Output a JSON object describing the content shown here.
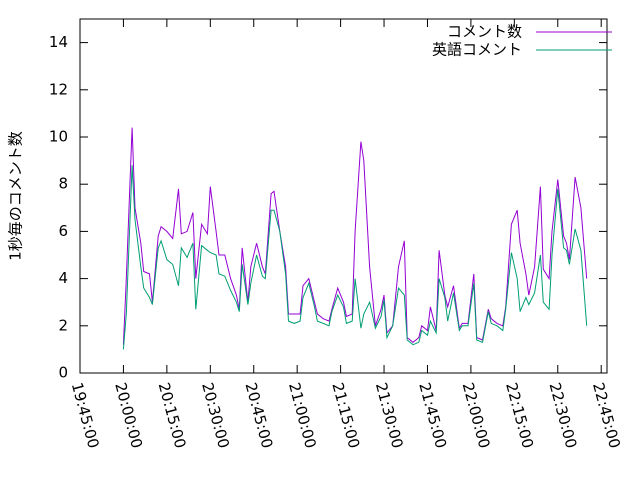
{
  "chart_data": {
    "type": "line",
    "y_label": "1秒毎のコメント数",
    "x": [
      "20:00:00",
      "20:01:00",
      "20:03:00",
      "20:04:00",
      "20:06:00",
      "20:07:00",
      "20:09:00",
      "20:10:00",
      "20:12:00",
      "20:13:00",
      "20:15:00",
      "20:17:00",
      "20:19:00",
      "20:20:00",
      "20:22:00",
      "20:24:00",
      "20:25:00",
      "20:27:00",
      "20:29:00",
      "20:30:00",
      "20:32:00",
      "20:33:00",
      "20:35:00",
      "20:37:00",
      "20:39:00",
      "20:40:00",
      "20:41:00",
      "20:43:00",
      "20:44:00",
      "20:46:00",
      "20:48:00",
      "20:49:00",
      "20:51:00",
      "20:52:00",
      "20:54:00",
      "20:56:00",
      "20:57:00",
      "20:59:00",
      "21:01:00",
      "21:02:00",
      "21:04:00",
      "21:06:00",
      "21:07:00",
      "21:09:00",
      "21:11:00",
      "21:12:00",
      "21:14:00",
      "21:16:00",
      "21:17:00",
      "21:19:00",
      "21:20:00",
      "21:22:00",
      "21:23:00",
      "21:25:00",
      "21:27:00",
      "21:29:00",
      "21:30:00",
      "21:31:00",
      "21:33:00",
      "21:35:00",
      "21:37:00",
      "21:38:00",
      "21:40:00",
      "21:42:00",
      "21:43:00",
      "21:45:00",
      "21:46:00",
      "21:48:00",
      "21:49:00",
      "21:51:00",
      "21:52:00",
      "21:54:00",
      "21:56:00",
      "21:57:00",
      "21:59:00",
      "22:01:00",
      "22:02:00",
      "22:04:00",
      "22:06:00",
      "22:07:00",
      "22:09:00",
      "22:11:00",
      "22:12:00",
      "22:14:00",
      "22:16:00",
      "22:17:00",
      "22:19:00",
      "22:20:00",
      "22:22:00",
      "22:24:00",
      "22:25:00",
      "22:27:00",
      "22:28:00",
      "22:30:00",
      "22:32:00",
      "22:33:00",
      "22:34:00",
      "22:36:00",
      "22:38:00",
      "22:40:00"
    ],
    "series": [
      {
        "name": "コメント数",
        "color": "#9400d3",
        "values": [
          1.2,
          4.0,
          10.4,
          7.0,
          5.5,
          4.3,
          4.2,
          3.0,
          5.8,
          6.2,
          6.0,
          5.7,
          7.8,
          5.9,
          6.0,
          6.8,
          4.0,
          6.3,
          5.9,
          7.9,
          6.0,
          5.0,
          5.0,
          4.0,
          3.3,
          2.7,
          5.3,
          3.0,
          4.5,
          5.5,
          4.5,
          4.2,
          7.6,
          7.7,
          6.0,
          4.5,
          2.5,
          2.5,
          2.5,
          3.7,
          4.0,
          3.0,
          2.5,
          2.3,
          2.2,
          2.7,
          3.6,
          3.0,
          2.4,
          2.5,
          6.0,
          9.8,
          9.0,
          4.5,
          2.0,
          2.7,
          3.3,
          1.7,
          2.0,
          4.5,
          5.6,
          1.5,
          1.3,
          1.5,
          2.0,
          1.8,
          2.8,
          1.8,
          5.2,
          3.3,
          2.8,
          3.7,
          1.9,
          2.1,
          2.1,
          4.2,
          1.5,
          1.4,
          2.7,
          2.3,
          2.1,
          2.0,
          2.8,
          6.3,
          6.9,
          5.5,
          4.2,
          3.3,
          4.5,
          7.9,
          4.4,
          4.0,
          6.0,
          8.2,
          5.8,
          5.5,
          4.8,
          8.3,
          7.0,
          4.0
        ]
      },
      {
        "name": "英語コメント",
        "color": "#009e73",
        "values": [
          1.0,
          2.5,
          8.8,
          6.5,
          4.5,
          3.6,
          3.2,
          2.9,
          5.3,
          5.6,
          4.8,
          4.6,
          3.7,
          5.3,
          4.9,
          5.5,
          2.7,
          5.4,
          5.2,
          5.1,
          5.0,
          4.2,
          4.1,
          3.5,
          3.0,
          2.6,
          4.6,
          2.9,
          3.8,
          5.0,
          4.1,
          4.0,
          6.9,
          6.9,
          6.0,
          4.2,
          2.2,
          2.1,
          2.2,
          3.2,
          3.8,
          2.8,
          2.2,
          2.1,
          2.0,
          2.6,
          3.3,
          2.8,
          2.1,
          2.2,
          4.0,
          1.9,
          2.5,
          3.0,
          1.9,
          2.4,
          3.1,
          1.5,
          2.0,
          3.6,
          3.3,
          1.4,
          1.2,
          1.3,
          1.8,
          1.6,
          2.2,
          1.7,
          4.0,
          3.2,
          2.2,
          3.4,
          1.8,
          2.0,
          2.0,
          3.8,
          1.4,
          1.3,
          2.6,
          2.1,
          2.0,
          1.8,
          2.7,
          5.1,
          4.0,
          2.6,
          3.2,
          2.9,
          3.4,
          5.0,
          3.0,
          2.7,
          5.0,
          7.8,
          5.3,
          5.2,
          4.6,
          6.1,
          5.2,
          2.0
        ]
      }
    ],
    "xlim": [
      "19:45:00",
      "22:47:00"
    ],
    "xticks": [
      "19:45:00",
      "20:00:00",
      "20:15:00",
      "20:30:00",
      "20:45:00",
      "21:00:00",
      "21:15:00",
      "21:30:00",
      "21:45:00",
      "22:00:00",
      "22:15:00",
      "22:30:00",
      "22:45:00"
    ],
    "ylim": [
      0,
      15
    ],
    "yticks": [
      0,
      2,
      4,
      6,
      8,
      10,
      12,
      14
    ],
    "legend": "top-right"
  }
}
